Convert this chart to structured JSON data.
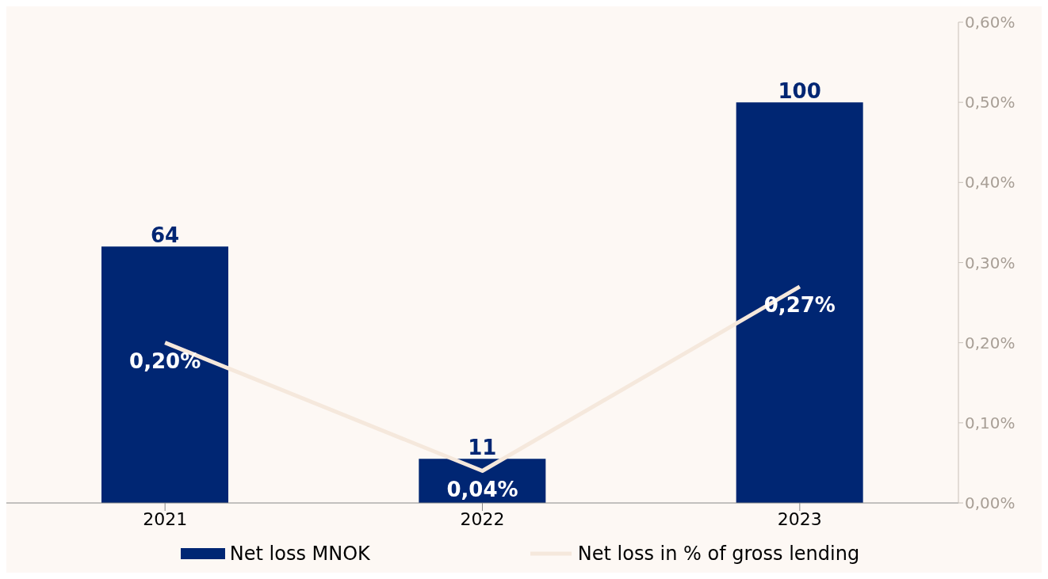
{
  "chart_data": {
    "type": "bar",
    "categories": [
      "2021",
      "2022",
      "2023"
    ],
    "series": [
      {
        "name": "Net loss MNOK",
        "color": "#002673",
        "values": [
          64,
          11,
          100
        ]
      },
      {
        "name": "Net  loss in % of gross lending",
        "type": "line",
        "axis": "y2",
        "color": "#f5e8dc",
        "values": [
          0.2,
          0.04,
          0.27
        ],
        "value_labels": [
          "0,20%",
          "0,04%",
          "0,27%"
        ]
      }
    ],
    "data_labels": true,
    "y2lim": [
      0,
      0.6
    ],
    "y2ticks": [
      {
        "value": 0,
        "label": "0,00%"
      },
      {
        "value": 0.1,
        "label": "0,10%"
      },
      {
        "value": 0.2,
        "label": "0,20%"
      },
      {
        "value": 0.3,
        "label": "0,30%"
      },
      {
        "value": 0.4,
        "label": "0,40%"
      },
      {
        "value": 0.5,
        "label": "0,50%"
      },
      {
        "value": 0.6,
        "label": "0,60%"
      }
    ],
    "tick_labels": "x",
    "grid": false,
    "legend": "bottom",
    "marker": "none"
  }
}
